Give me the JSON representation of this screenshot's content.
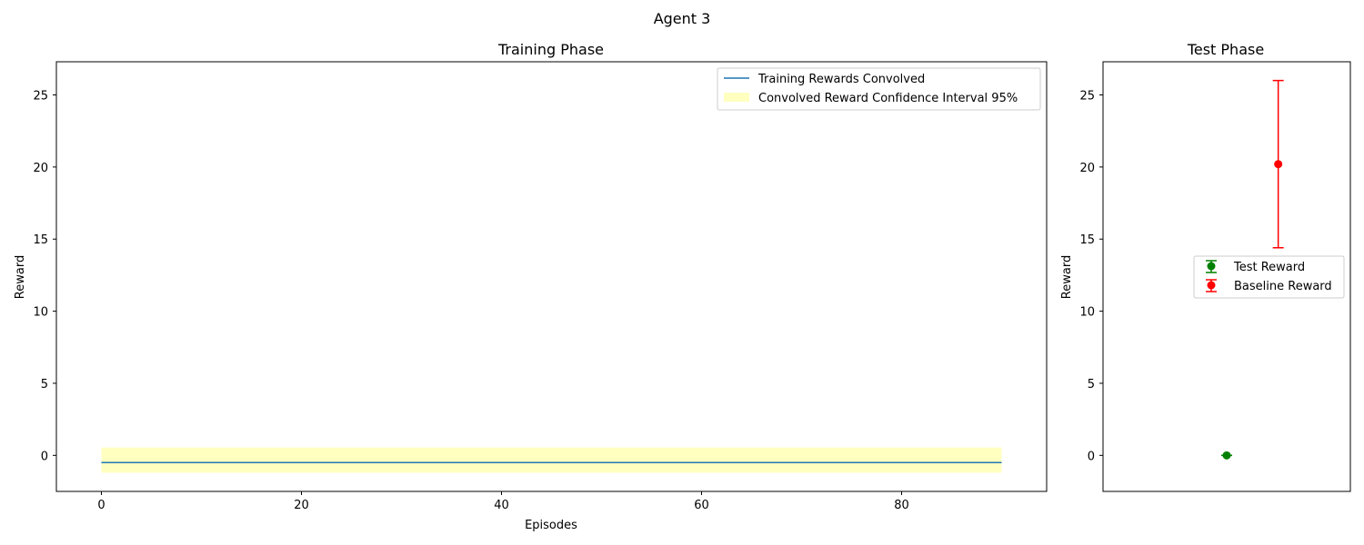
{
  "figure": {
    "suptitle": "Agent 3"
  },
  "chart_data": [
    {
      "type": "line",
      "title": "Training Phase",
      "xlabel": "Episodes",
      "ylabel": "Reward",
      "xlim": [
        -4.5,
        94.5
      ],
      "ylim": [
        -2.5,
        27.3
      ],
      "xticks": [
        0,
        20,
        40,
        60,
        80
      ],
      "yticks": [
        0,
        5,
        10,
        15,
        20,
        25
      ],
      "grid": false,
      "legend_position": "upper right",
      "series": [
        {
          "name": "Training Rewards Convolved",
          "color": "#1f77b4",
          "x": [
            0,
            90
          ],
          "y": [
            -0.5,
            -0.5
          ]
        }
      ],
      "band": {
        "name": "Convolved Reward Confidence Interval 95%",
        "color": "#ffffc0",
        "x": [
          0,
          90
        ],
        "lower": [
          -1.2,
          -1.2
        ],
        "upper": [
          0.55,
          0.55
        ]
      }
    },
    {
      "type": "scatter",
      "title": "Test Phase",
      "xlabel": "",
      "ylabel": "Reward",
      "xlim": [
        -1.2,
        1.2
      ],
      "ylim": [
        -2.5,
        27.3
      ],
      "yticks": [
        0,
        5,
        10,
        15,
        20,
        25
      ],
      "grid": false,
      "legend_position": "center right",
      "series": [
        {
          "name": "Test Reward",
          "color": "#008000",
          "x": 0,
          "y": 0.0,
          "err": 0.0
        },
        {
          "name": "Baseline Reward",
          "color": "#ff0000",
          "x": 0.5,
          "y": 20.2,
          "err": 5.8
        }
      ]
    }
  ]
}
